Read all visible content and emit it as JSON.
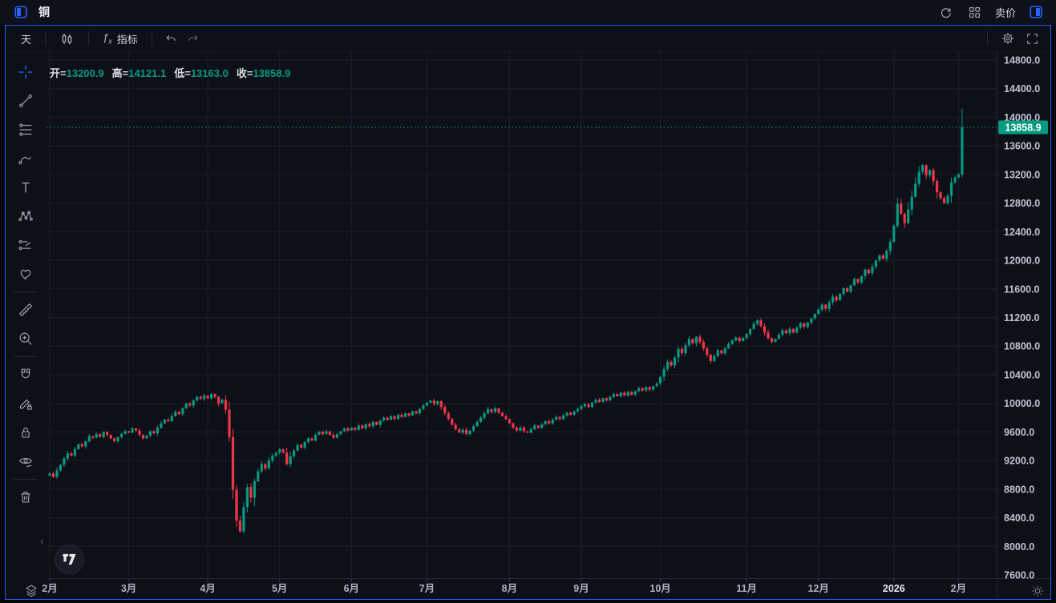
{
  "topbar": {
    "symbol": "铜",
    "sell_label": "卖价"
  },
  "toolbar": {
    "interval_label": "天",
    "indicators_label": "指标"
  },
  "legend": {
    "open_label": "开",
    "open_value": "13200.9",
    "high_label": "高",
    "high_value": "14121.1",
    "low_label": "低",
    "low_value": "13163.0",
    "close_label": "收",
    "close_value": "13858.9"
  },
  "last_price_label": "13858.9",
  "colors": {
    "up": "#089981",
    "down": "#f23645",
    "accent": "#2962ff",
    "background": "#0d1018",
    "grid": "#1a1f2a",
    "axis_text": "#bfc3ce",
    "axis_border": "#232835"
  },
  "price_axis": {
    "labels": [
      "14800.0",
      "14400.0",
      "14000.0",
      "13600.0",
      "13200.0",
      "12800.0",
      "12400.0",
      "12000.0",
      "11600.0",
      "11200.0",
      "10800.0",
      "10400.0",
      "10000.0",
      "9600.0",
      "9200.0",
      "8800.0",
      "8400.0",
      "8000.0",
      "7600.0"
    ]
  },
  "time_axis": {
    "months": [
      {
        "label": "2月",
        "i": 0
      },
      {
        "label": "3月",
        "i": 22
      },
      {
        "label": "4月",
        "i": 44
      },
      {
        "label": "5月",
        "i": 64
      },
      {
        "label": "6月",
        "i": 84
      },
      {
        "label": "7月",
        "i": 105
      },
      {
        "label": "8月",
        "i": 128
      },
      {
        "label": "9月",
        "i": 148
      },
      {
        "label": "10月",
        "i": 170
      },
      {
        "label": "11月",
        "i": 194
      },
      {
        "label": "12月",
        "i": 214
      },
      {
        "label": "2026",
        "i": 235,
        "year": true
      },
      {
        "label": "2月",
        "i": 253
      }
    ]
  },
  "sidebar_tools": [
    "crosshair",
    "trend-line",
    "fib-lines",
    "curve",
    "text",
    "xabcd-pattern",
    "forecast",
    "heart",
    "divider",
    "ruler",
    "zoom-in",
    "divider",
    "magnet",
    "drawing-lock",
    "lock-all",
    "hide-drawings",
    "divider",
    "remove-drawings"
  ],
  "chart_data": {
    "type": "candlestick",
    "title": "铜 · 天 (copper daily)",
    "ylim": [
      7600,
      14800
    ],
    "y_step": 400,
    "x_range": "2025-02 — 2026-02",
    "legend_position": "top-left",
    "grid": true,
    "last_price": 13858.9,
    "ohlc_last": {
      "open": 13200.9,
      "high": 14121.1,
      "low": 13163.0,
      "close": 13858.9
    },
    "closes": [
      9020,
      8970,
      9060,
      9140,
      9230,
      9300,
      9270,
      9360,
      9430,
      9400,
      9470,
      9540,
      9520,
      9570,
      9530,
      9600,
      9560,
      9510,
      9470,
      9530,
      9570,
      9610,
      9590,
      9650,
      9620,
      9560,
      9510,
      9550,
      9610,
      9580,
      9660,
      9720,
      9770,
      9750,
      9820,
      9880,
      9850,
      9930,
      10000,
      9970,
      10040,
      10090,
      10060,
      10110,
      10070,
      10130,
      10090,
      10000,
      10050,
      9910,
      9530,
      8790,
      8360,
      8210,
      8550,
      8830,
      8680,
      8910,
      9050,
      9150,
      9090,
      9200,
      9270,
      9310,
      9360,
      9310,
      9150,
      9260,
      9340,
      9420,
      9380,
      9460,
      9510,
      9480,
      9560,
      9600,
      9570,
      9610,
      9560,
      9520,
      9570,
      9610,
      9650,
      9620,
      9660,
      9630,
      9690,
      9650,
      9710,
      9680,
      9740,
      9700,
      9760,
      9800,
      9770,
      9820,
      9780,
      9840,
      9810,
      9860,
      9830,
      9890,
      9860,
      9920,
      9970,
      10010,
      10040,
      9990,
      10030,
      9950,
      9860,
      9780,
      9700,
      9640,
      9590,
      9630,
      9570,
      9620,
      9680,
      9740,
      9800,
      9860,
      9920,
      9880,
      9930,
      9870,
      9820,
      9780,
      9720,
      9660,
      9620,
      9660,
      9610,
      9590,
      9640,
      9690,
      9660,
      9710,
      9750,
      9720,
      9770,
      9810,
      9780,
      9830,
      9870,
      9840,
      9890,
      9920,
      9960,
      9990,
      9950,
      10010,
      10050,
      10020,
      10070,
      10040,
      10090,
      10130,
      10100,
      10150,
      10110,
      10160,
      10120,
      10170,
      10210,
      10180,
      10230,
      10190,
      10240,
      10280,
      10370,
      10480,
      10580,
      10530,
      10640,
      10760,
      10700,
      10810,
      10900,
      10840,
      10930,
      10860,
      10770,
      10680,
      10590,
      10660,
      10740,
      10700,
      10770,
      10830,
      10880,
      10920,
      10870,
      10910,
      10970,
      11040,
      11110,
      11160,
      11080,
      10990,
      10910,
      10860,
      10900,
      10960,
      11020,
      10980,
      11040,
      10990,
      11060,
      11120,
      11070,
      11130,
      11190,
      11250,
      11310,
      11380,
      11320,
      11410,
      11490,
      11440,
      11530,
      11610,
      11560,
      11650,
      11740,
      11690,
      11780,
      11870,
      11820,
      11910,
      12000,
      12070,
      12020,
      12130,
      12260,
      12480,
      12790,
      12650,
      12520,
      12710,
      12890,
      13070,
      13240,
      13330,
      13190,
      13260,
      13110,
      12950,
      12870,
      12800,
      12900,
      13090,
      13160,
      13200.9,
      13858.9
    ]
  }
}
